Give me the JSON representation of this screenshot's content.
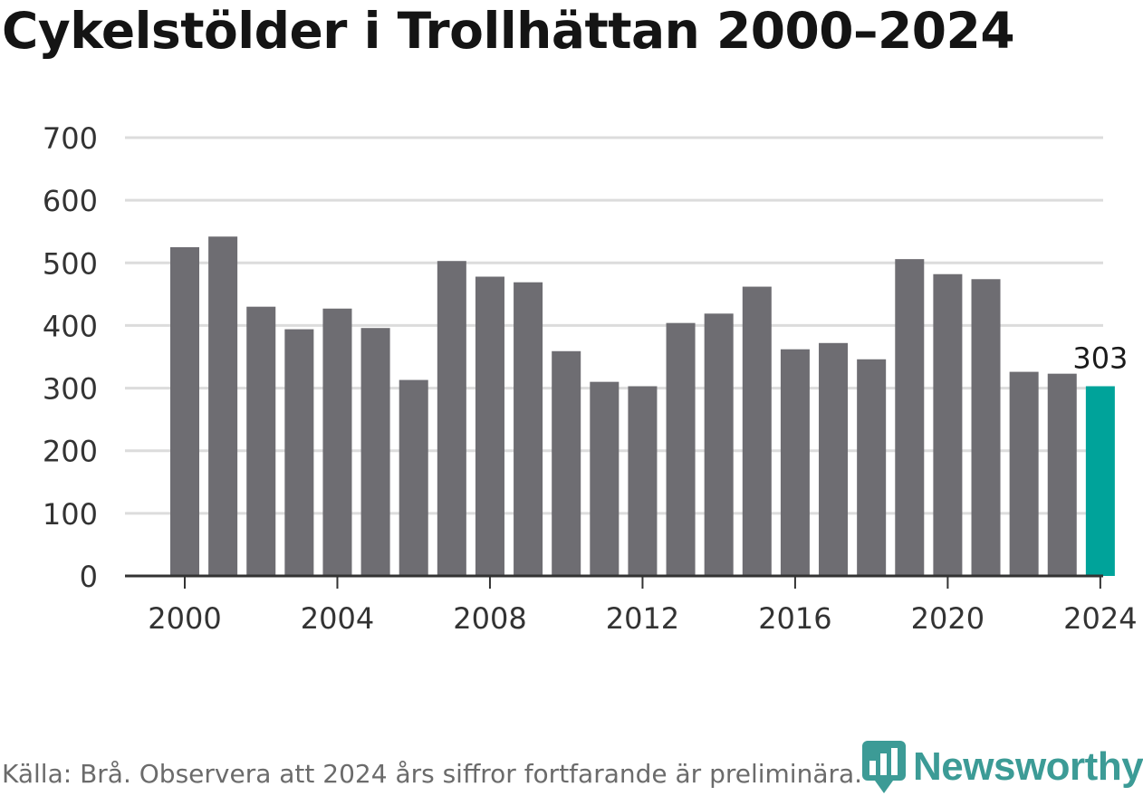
{
  "title": "Cykelstölder i Trollhättan 2000–2024",
  "footer": {
    "source": "Källa: Brå. Observera att 2024 års siffror fortfarande är preliminära."
  },
  "brand": {
    "name": "Newsworthy",
    "logo_icon": "bar-chart-pin-icon",
    "color": "#3c9b96"
  },
  "colors": {
    "bar": "#6e6d72",
    "highlight": "#00a39a",
    "grid": "#dcdcdc",
    "axis": "#333333"
  },
  "chart_data": {
    "type": "bar",
    "title": "Cykelstölder i Trollhättan 2000–2024",
    "xlabel": "",
    "ylabel": "",
    "x": [
      2000,
      2001,
      2002,
      2003,
      2004,
      2005,
      2006,
      2007,
      2008,
      2009,
      2010,
      2011,
      2012,
      2013,
      2014,
      2015,
      2016,
      2017,
      2018,
      2019,
      2020,
      2021,
      2022,
      2023,
      2024
    ],
    "values": [
      525,
      542,
      430,
      394,
      427,
      396,
      313,
      503,
      478,
      469,
      359,
      310,
      303,
      404,
      419,
      462,
      362,
      372,
      346,
      506,
      482,
      474,
      326,
      323,
      303
    ],
    "ylim": [
      0,
      700
    ],
    "yticks": [
      0,
      100,
      200,
      300,
      400,
      500,
      600,
      700
    ],
    "xticks": [
      2000,
      2004,
      2008,
      2012,
      2016,
      2020,
      2024
    ],
    "highlight": {
      "x": 2024,
      "label": "303"
    },
    "grid": true
  }
}
